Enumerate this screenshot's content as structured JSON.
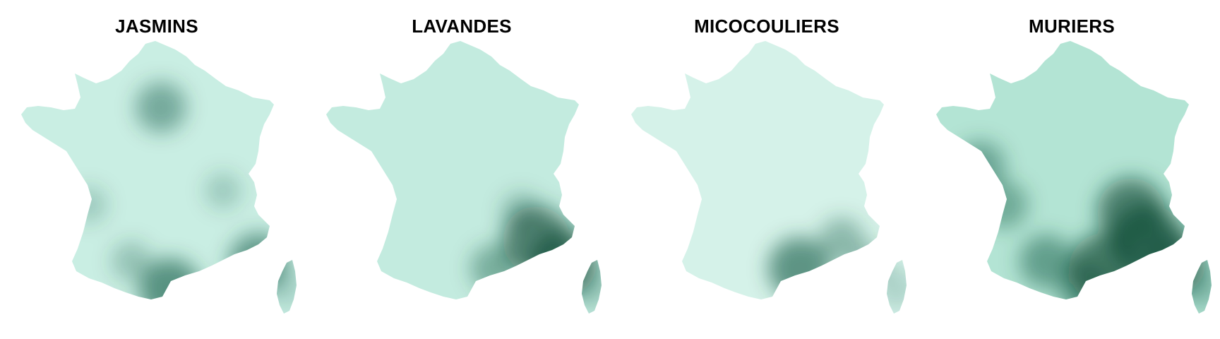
{
  "panels": [
    {
      "title": "JASMINS",
      "base_color": "#c9eee3",
      "hotspots": [
        {
          "name": "paris",
          "intensity": 0.55
        },
        {
          "name": "perpignan",
          "intensity": 0.75
        },
        {
          "name": "nice-coast",
          "intensity": 0.7
        },
        {
          "name": "toulouse",
          "intensity": 0.35
        },
        {
          "name": "lyon",
          "intensity": 0.3
        },
        {
          "name": "bordeaux",
          "intensity": 0.3
        }
      ],
      "corsica_intensity": 0.4
    },
    {
      "title": "LAVANDES",
      "base_color": "#c3ebdf",
      "hotspots": [
        {
          "name": "provence",
          "intensity": 0.85
        },
        {
          "name": "nice-coast",
          "intensity": 0.85
        },
        {
          "name": "montpellier",
          "intensity": 0.5
        },
        {
          "name": "rhone-valley",
          "intensity": 0.35
        }
      ],
      "corsica_intensity": 0.55
    },
    {
      "title": "MICOCOULIERS",
      "base_color": "#d5f2e9",
      "hotspots": [
        {
          "name": "montpellier",
          "intensity": 0.75
        },
        {
          "name": "provence",
          "intensity": 0.45
        },
        {
          "name": "nice-coast",
          "intensity": 0.35
        }
      ],
      "corsica_intensity": 0.45
    },
    {
      "title": "MURIERS",
      "base_color": "#b3e4d4",
      "hotspots": [
        {
          "name": "provence",
          "intensity": 0.95
        },
        {
          "name": "rhone-valley",
          "intensity": 0.85
        },
        {
          "name": "montpellier",
          "intensity": 0.9
        },
        {
          "name": "nice-coast",
          "intensity": 0.8
        },
        {
          "name": "toulouse",
          "intensity": 0.6
        },
        {
          "name": "perpignan",
          "intensity": 0.6
        },
        {
          "name": "west-coast",
          "intensity": 0.55
        },
        {
          "name": "bordeaux",
          "intensity": 0.5
        }
      ],
      "corsica_intensity": 0.7
    }
  ]
}
